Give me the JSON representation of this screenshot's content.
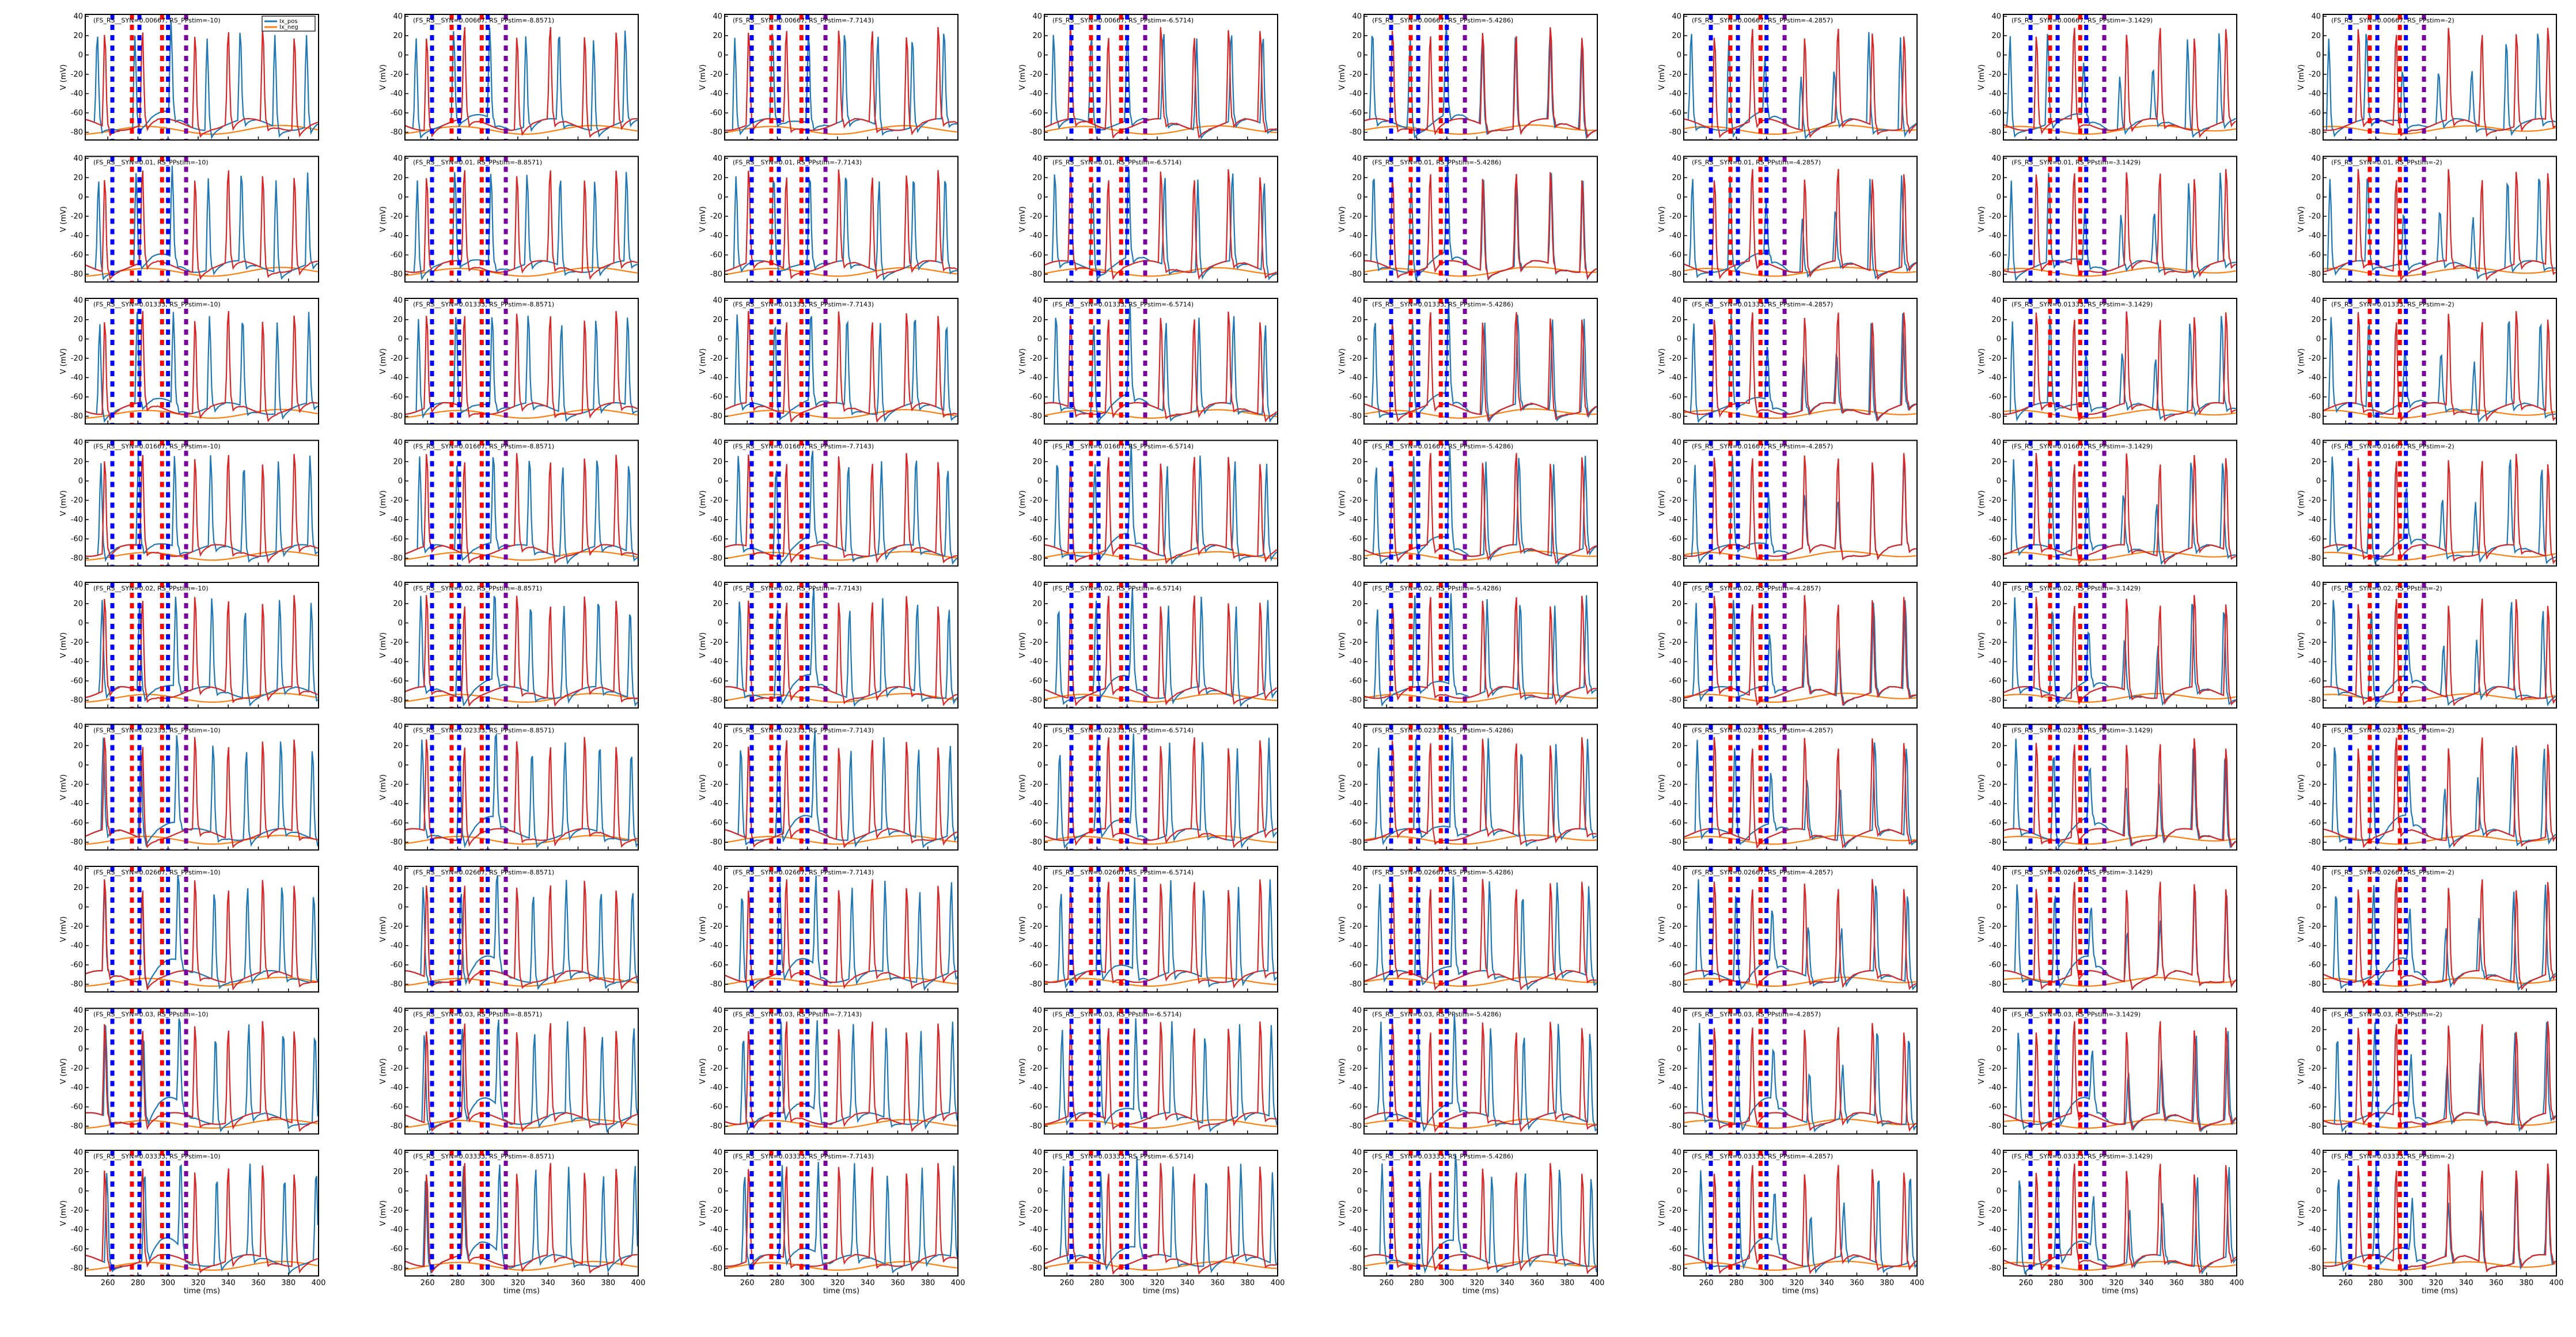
{
  "chart_data": {
    "type": "line",
    "layout": {
      "rows": 9,
      "cols": 8
    },
    "xlim": [
      245,
      400
    ],
    "ylim": [
      -88,
      42
    ],
    "xticks": [
      260,
      280,
      300,
      320,
      340,
      360,
      380,
      400
    ],
    "yticks": [
      40,
      20,
      0,
      -20,
      -40,
      -60,
      -80
    ],
    "xlabel": "time (ms)",
    "ylabel": "V (mV)",
    "colors": {
      "blue_trace": "#1f77b4",
      "orange_trace": "#ff7f0e",
      "red_trace": "#d62728",
      "marker_blue": "#0000ff",
      "marker_red": "#ff0000"
    },
    "stim_values": [
      "-10",
      "-8.8571",
      "-7.7143",
      "-6.5714",
      "-5.4286",
      "-4.2857",
      "-3.1429",
      "-2"
    ],
    "syn_values": [
      "0.00667",
      "0.01",
      "0.01333",
      "0.01667",
      "0.02",
      "0.02333",
      "0.02667",
      "0.03",
      "0.03333"
    ],
    "title_prefix": "(FS_RS_",
    "title_syn": "_SYN=",
    "title_stim": ", RS_PPstim=",
    "title_suffix": ")",
    "markers": {
      "blue": [
        263,
        281,
        300
      ],
      "red": [
        276,
        296
      ],
      "purple": [
        312
      ]
    },
    "series_shape": {
      "red_spikes": [
        258,
        283,
        318,
        340,
        363,
        384
      ],
      "blue_spikes": [
        253,
        278,
        302,
        326,
        348,
        371,
        392
      ]
    },
    "legend": [
      "Ix_pos",
      "Ix_neg"
    ]
  }
}
